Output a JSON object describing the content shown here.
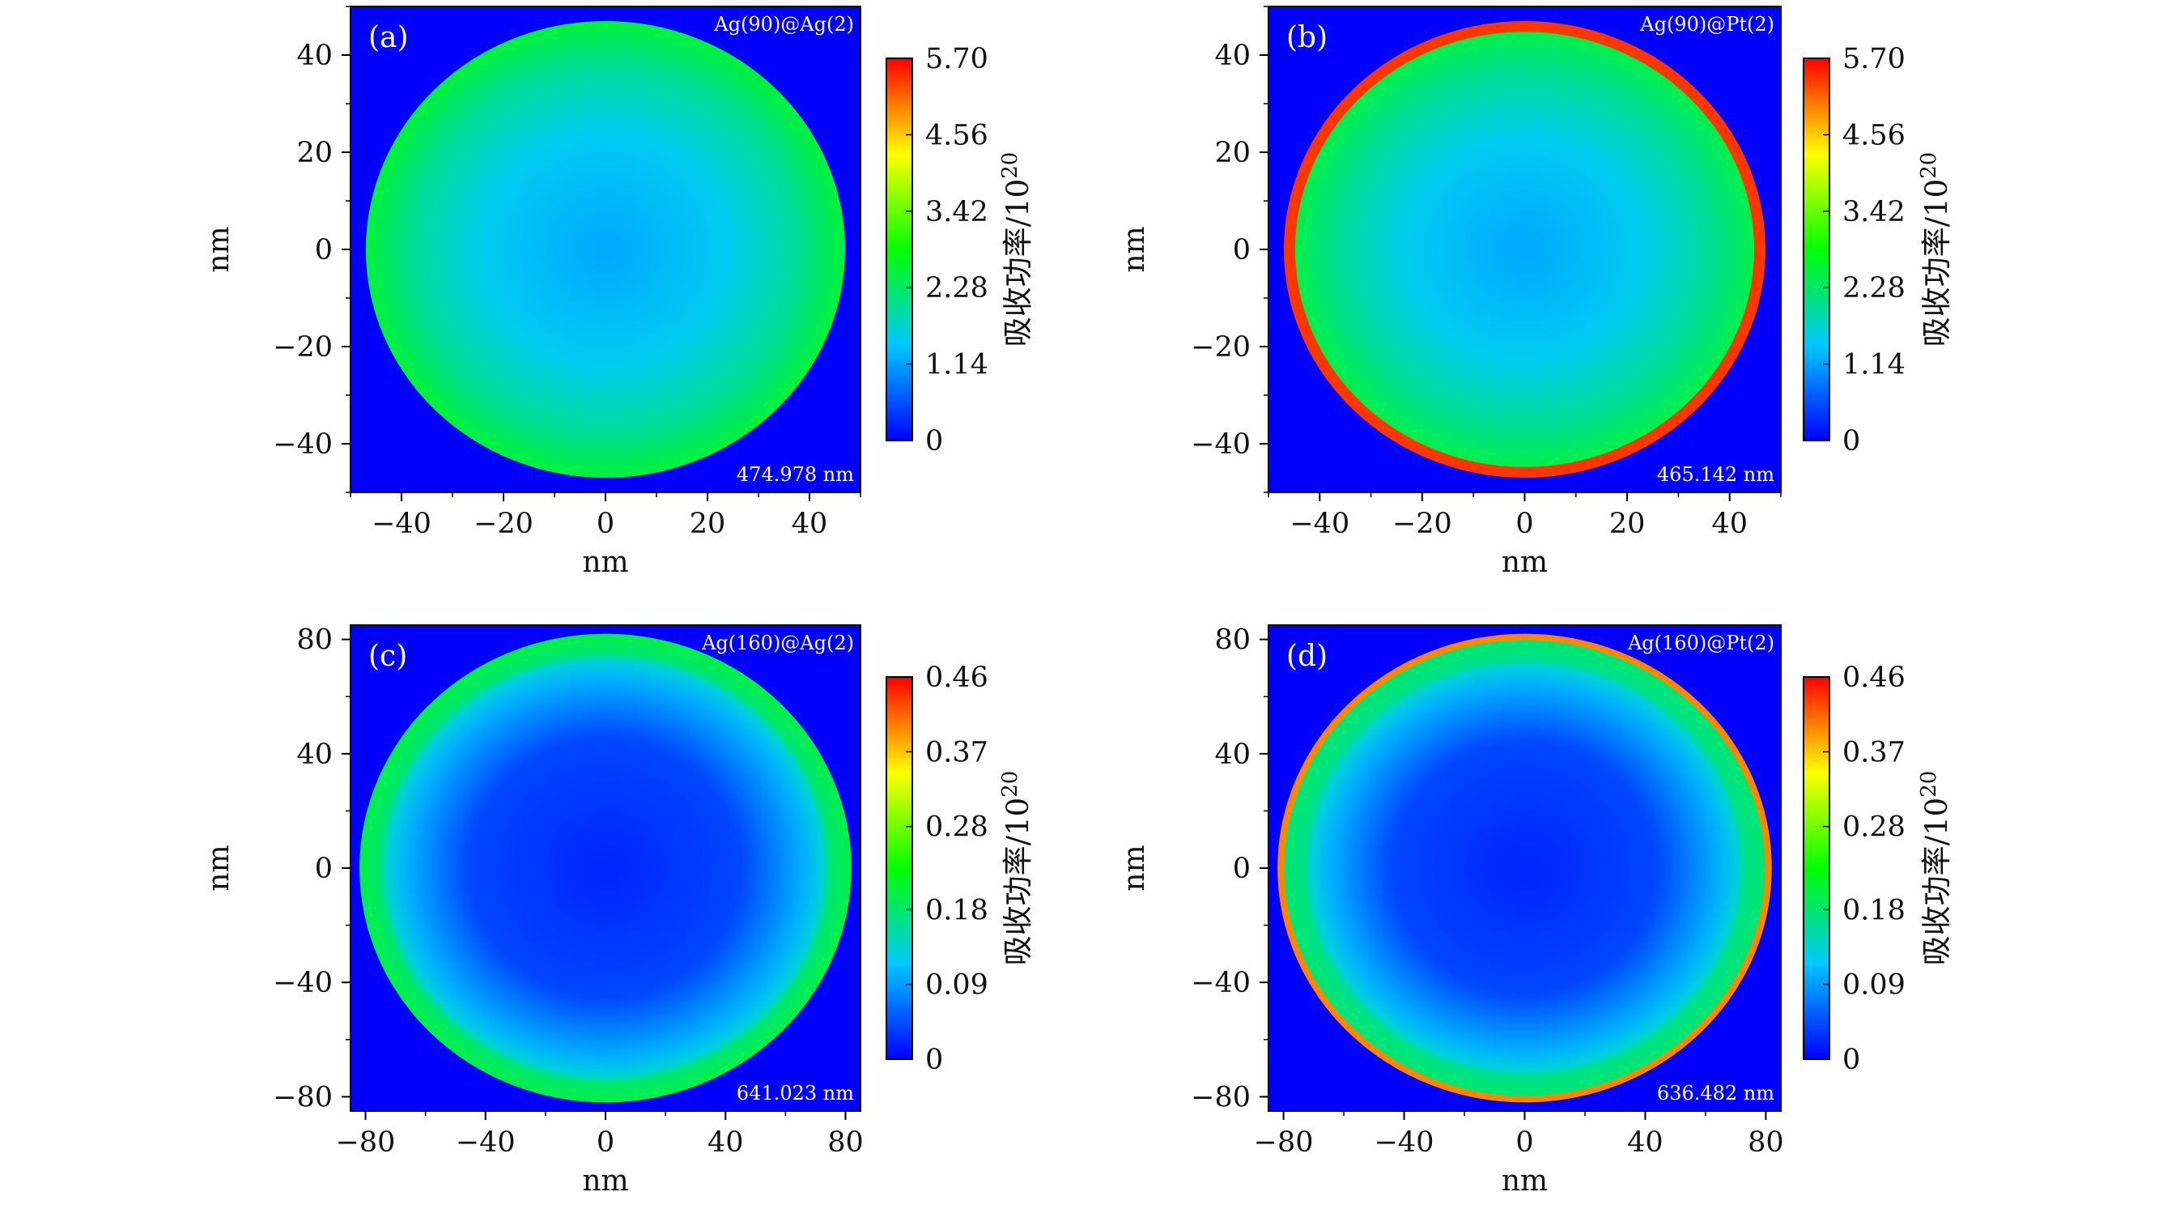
{
  "chart_data": [
    {
      "type": "heatmap",
      "panel_label": "(a)",
      "title": "Ag(90)@Ag(2)",
      "annotation": "474.978 nm",
      "xlabel": "nm",
      "ylabel": "nm",
      "xlim": [
        -50,
        50
      ],
      "ylim": [
        -50,
        50
      ],
      "xticks": [
        "−40",
        "−20",
        "0",
        "20",
        "40"
      ],
      "xtick_values": [
        -40,
        -20,
        0,
        20,
        40
      ],
      "yticks": [
        "40",
        "20",
        "0",
        "−20",
        "−40"
      ],
      "ytick_values": [
        40,
        20,
        0,
        -20,
        -40
      ],
      "particle_radius": 47,
      "shell_thickness": 0,
      "profile": [
        [
          0,
          1.2
        ],
        [
          0.5,
          1.5
        ],
        [
          0.8,
          2.0
        ],
        [
          1.0,
          2.55
        ]
      ],
      "shell_value": 0,
      "colorbar": {
        "label": "吸收功率/10",
        "exponent": "20",
        "ticks": [
          "5.70",
          "4.56",
          "3.42",
          "2.28",
          "1.14",
          "0"
        ],
        "tick_values": [
          5.7,
          4.56,
          3.42,
          2.28,
          1.14,
          0
        ],
        "max": 5.7
      }
    },
    {
      "type": "heatmap",
      "panel_label": "(b)",
      "title": "Ag(90)@Pt(2)",
      "annotation": "465.142 nm",
      "xlabel": "nm",
      "ylabel": "nm",
      "xlim": [
        -50,
        50
      ],
      "ylim": [
        -50,
        50
      ],
      "xticks": [
        "−40",
        "−20",
        "0",
        "20",
        "40"
      ],
      "xtick_values": [
        -40,
        -20,
        0,
        20,
        40
      ],
      "yticks": [
        "40",
        "20",
        "0",
        "−20",
        "−40"
      ],
      "ytick_values": [
        40,
        20,
        0,
        -20,
        -40
      ],
      "particle_radius": 47,
      "shell_thickness": 2,
      "profile": [
        [
          0,
          1.2
        ],
        [
          0.5,
          1.5
        ],
        [
          0.8,
          2.0
        ],
        [
          1.0,
          2.45
        ]
      ],
      "shell_value": 5.4,
      "colorbar": {
        "label": "吸收功率/10",
        "exponent": "20",
        "ticks": [
          "5.70",
          "4.56",
          "3.42",
          "2.28",
          "1.14",
          "0"
        ],
        "tick_values": [
          5.7,
          4.56,
          3.42,
          2.28,
          1.14,
          0
        ],
        "max": 5.7
      }
    },
    {
      "type": "heatmap",
      "panel_label": "(c)",
      "title": "Ag(160)@Ag(2)",
      "annotation": "641.023 nm",
      "xlabel": "nm",
      "ylabel": "nm",
      "xlim": [
        -85,
        85
      ],
      "ylim": [
        -85,
        85
      ],
      "xticks": [
        "−80",
        "−40",
        "0",
        "40",
        "80"
      ],
      "xtick_values": [
        -80,
        -40,
        0,
        40,
        80
      ],
      "yticks": [
        "80",
        "40",
        "0",
        "−40",
        "−80"
      ],
      "ytick_values": [
        80,
        40,
        0,
        -40,
        -80
      ],
      "particle_radius": 82,
      "shell_thickness": 0,
      "profile": [
        [
          0,
          0.02
        ],
        [
          0.55,
          0.04
        ],
        [
          0.8,
          0.1
        ],
        [
          0.88,
          0.13
        ],
        [
          0.92,
          0.18
        ],
        [
          1.0,
          0.2
        ]
      ],
      "shell_value": 0,
      "colorbar": {
        "label": "吸收功率/10",
        "exponent": "20",
        "ticks": [
          "0.46",
          "0.37",
          "0.28",
          "0.18",
          "0.09",
          "0"
        ],
        "tick_values": [
          0.46,
          0.37,
          0.28,
          0.18,
          0.09,
          0
        ],
        "max": 0.46
      }
    },
    {
      "type": "heatmap",
      "panel_label": "(d)",
      "title": "Ag(160)@Pt(2)",
      "annotation": "636.482 nm",
      "xlabel": "nm",
      "ylabel": "nm",
      "xlim": [
        -85,
        85
      ],
      "ylim": [
        -85,
        85
      ],
      "xticks": [
        "−80",
        "−40",
        "0",
        "40",
        "80"
      ],
      "xtick_values": [
        -80,
        -40,
        0,
        40,
        80
      ],
      "yticks": [
        "80",
        "40",
        "0",
        "−40",
        "−80"
      ],
      "ytick_values": [
        80,
        40,
        0,
        -40,
        -80
      ],
      "particle_radius": 82,
      "shell_thickness": 2,
      "profile": [
        [
          0,
          0.02
        ],
        [
          0.55,
          0.04
        ],
        [
          0.8,
          0.1
        ],
        [
          0.88,
          0.13
        ],
        [
          0.92,
          0.17
        ],
        [
          1.0,
          0.18
        ]
      ],
      "shell_value": 0.4,
      "colorbar": {
        "label": "吸收功率/10",
        "exponent": "20",
        "ticks": [
          "0.46",
          "0.37",
          "0.28",
          "0.18",
          "0.09",
          "0"
        ],
        "tick_values": [
          0.46,
          0.37,
          0.28,
          0.18,
          0.09,
          0
        ],
        "max": 0.46
      }
    }
  ],
  "colormap": [
    "#0000ff",
    "#00c8ff",
    "#00ff00",
    "#ffff00",
    "#ff0000"
  ],
  "background_color": "#0000ff"
}
